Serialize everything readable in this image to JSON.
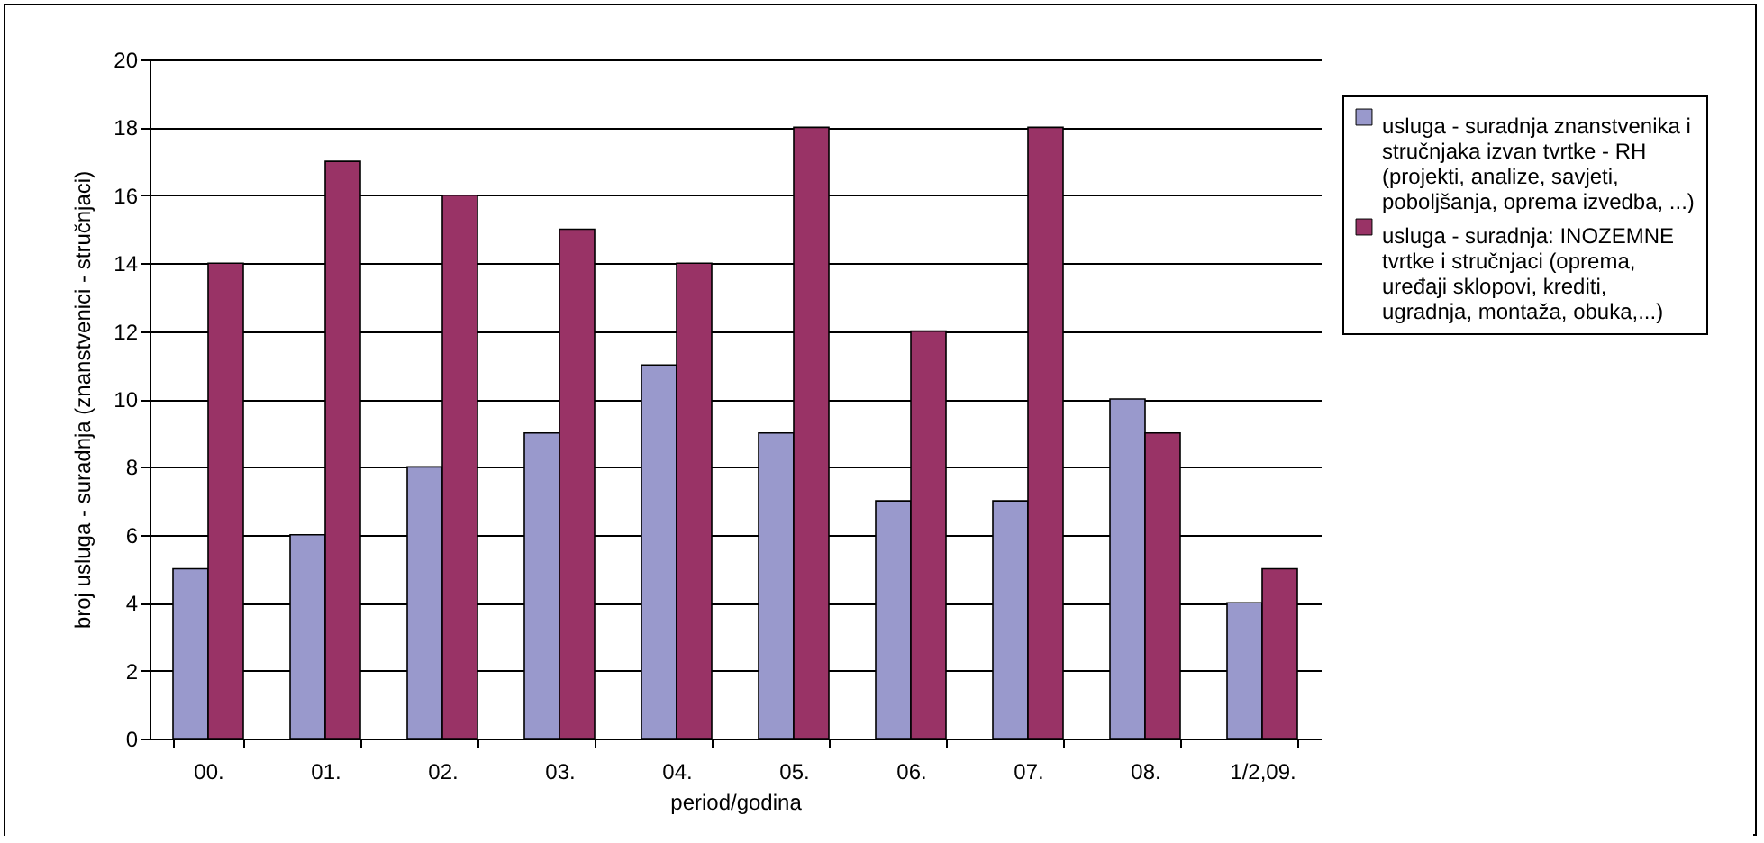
{
  "chart_data": {
    "type": "bar",
    "xlabel": "period/godina",
    "ylabel": "broj usluga - suradnja (znanstvenici - stručnjaci)",
    "categories": [
      "00.",
      "01.",
      "02.",
      "03.",
      "04.",
      "05.",
      "06.",
      "07.",
      "08.",
      "1/2,09."
    ],
    "series": [
      {
        "name": "usluga - suradnja znanstvenika i stručnjaka izvan tvrtke - RH (projekti, analize, savjeti, poboljšanja, oprema izvedba, ...)",
        "color": "#9999cc",
        "values": [
          5,
          6,
          8,
          9,
          11,
          9,
          7,
          7,
          10,
          4
        ]
      },
      {
        "name": "usluga - suradnja: INOZEMNE tvrtke i stručnjaci (oprema, uređaji sklopovi, krediti, ugradnja, montaža, obuka,...)",
        "color": "#993366",
        "values": [
          14,
          17,
          16,
          15,
          14,
          18,
          12,
          18,
          9,
          5
        ]
      }
    ],
    "ylim": [
      0,
      20
    ],
    "yticks": [
      0,
      2,
      4,
      6,
      8,
      10,
      12,
      14,
      16,
      18,
      20
    ],
    "grid": "y",
    "legend": "right"
  }
}
